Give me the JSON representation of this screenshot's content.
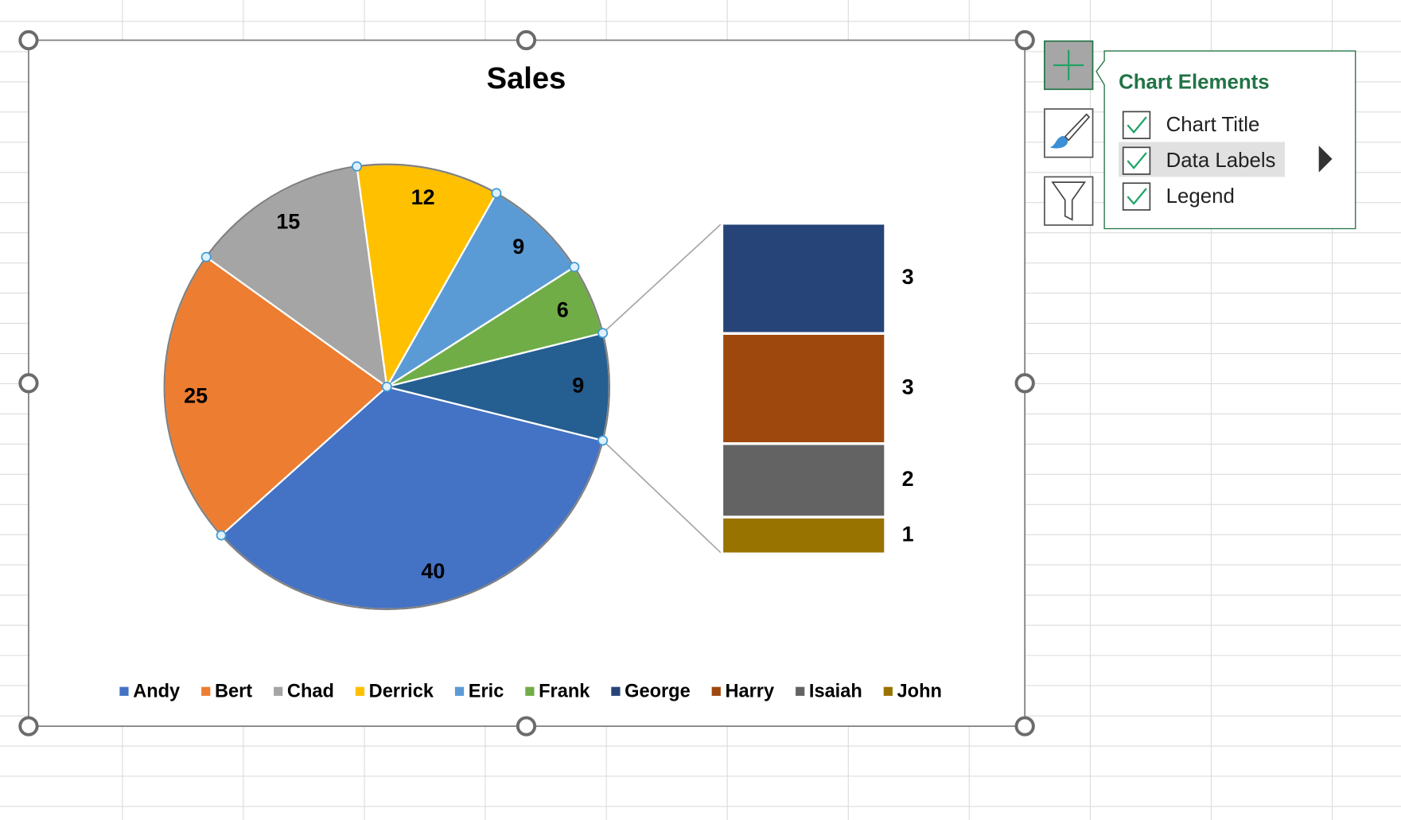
{
  "chart_data": {
    "type": "bar-of-pie",
    "title": "Sales",
    "categories": [
      "Andy",
      "Bert",
      "Chad",
      "Derrick",
      "Eric",
      "Frank",
      "George",
      "Harry",
      "Isaiah",
      "John"
    ],
    "values": [
      40,
      25,
      15,
      12,
      9,
      6,
      3,
      3,
      2,
      1
    ],
    "colors": [
      "#4472c4",
      "#ed7d31",
      "#a5a5a5",
      "#ffc000",
      "#5b9bd5",
      "#70ad47",
      "#264478",
      "#9e480e",
      "#636363",
      "#997300"
    ],
    "other": {
      "value": 9,
      "color": "#255e91"
    },
    "second_plot_count": 4,
    "legend": "bottom",
    "data_labels": true
  },
  "ui": {
    "panel_title": "Chart Elements",
    "items": [
      {
        "label": "Chart Title",
        "checked": true
      },
      {
        "label": "Data Labels",
        "checked": true
      },
      {
        "label": "Legend",
        "checked": true
      }
    ]
  }
}
